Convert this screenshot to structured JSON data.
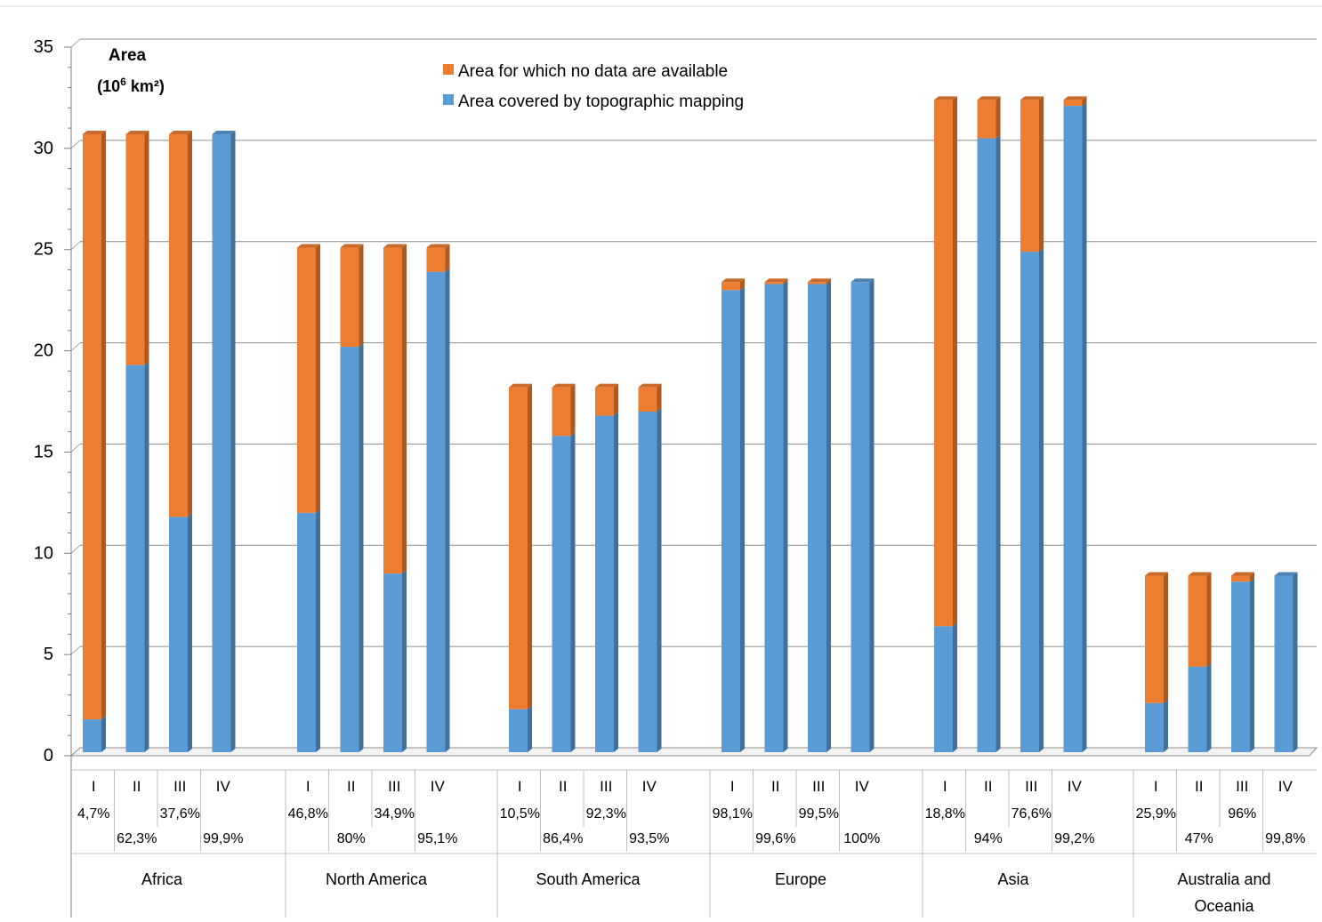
{
  "chart_data": {
    "type": "bar",
    "stacked": true,
    "title": "",
    "ylabel_line1": "Area",
    "ylabel_line2_base": "(10",
    "ylabel_line2_exp": "6",
    "ylabel_line2_unit": " km²)",
    "ylim": [
      0,
      35
    ],
    "yticks": [
      "0",
      "5",
      "10",
      "15",
      "20",
      "25",
      "30",
      "35"
    ],
    "grid": true,
    "legend_position": "top-center",
    "series": [
      {
        "name": "Area for which no data are available",
        "color": "#ED7D31",
        "role": "no-data"
      },
      {
        "name": "Area covered by topographic mapping",
        "color": "#5B9BD5",
        "role": "covered"
      }
    ],
    "groups": [
      {
        "name": "Africa",
        "bars": [
          {
            "label": "I",
            "pct": "4,7%",
            "covered": 1.4,
            "total": 30.3
          },
          {
            "label": "II",
            "pct": "62,3%",
            "covered": 18.9,
            "total": 30.3
          },
          {
            "label": "III",
            "pct": "37,6%",
            "covered": 11.4,
            "total": 30.3
          },
          {
            "label": "IV",
            "pct": "99,9%",
            "covered": 30.3,
            "total": 30.3
          }
        ]
      },
      {
        "name": "North America",
        "bars": [
          {
            "label": "I",
            "pct": "46,8%",
            "covered": 11.6,
            "total": 24.7
          },
          {
            "label": "II",
            "pct": "80%",
            "covered": 19.8,
            "total": 24.7
          },
          {
            "label": "III",
            "pct": "34,9%",
            "covered": 8.6,
            "total": 24.7
          },
          {
            "label": "IV",
            "pct": "95,1%",
            "covered": 23.5,
            "total": 24.7
          }
        ]
      },
      {
        "name": "South America",
        "bars": [
          {
            "label": "I",
            "pct": "10,5%",
            "covered": 1.9,
            "total": 17.8
          },
          {
            "label": "II",
            "pct": "86,4%",
            "covered": 15.4,
            "total": 17.8
          },
          {
            "label": "III",
            "pct": "92,3%",
            "covered": 16.4,
            "total": 17.8
          },
          {
            "label": "IV",
            "pct": "93,5%",
            "covered": 16.6,
            "total": 17.8
          }
        ]
      },
      {
        "name": "Europe",
        "bars": [
          {
            "label": "I",
            "pct": "98,1%",
            "covered": 22.6,
            "total": 23.0
          },
          {
            "label": "II",
            "pct": "99,6%",
            "covered": 22.9,
            "total": 23.0
          },
          {
            "label": "III",
            "pct": "99,5%",
            "covered": 22.9,
            "total": 23.0
          },
          {
            "label": "IV",
            "pct": "100%",
            "covered": 23.0,
            "total": 23.0
          }
        ]
      },
      {
        "name": "Asia",
        "bars": [
          {
            "label": "I",
            "pct": "18,8%",
            "covered": 6.0,
            "total": 32.0
          },
          {
            "label": "II",
            "pct": "94%",
            "covered": 30.1,
            "total": 32.0
          },
          {
            "label": "III",
            "pct": "76,6%",
            "covered": 24.5,
            "total": 32.0
          },
          {
            "label": "IV",
            "pct": "99,2%",
            "covered": 31.7,
            "total": 32.0
          }
        ]
      },
      {
        "name": "Australia and Oceania",
        "name_lines": [
          "Australia and",
          "Oceania"
        ],
        "bars": [
          {
            "label": "I",
            "pct": "25,9%",
            "covered": 2.2,
            "total": 8.5
          },
          {
            "label": "II",
            "pct": "47%",
            "covered": 4.0,
            "total": 8.5
          },
          {
            "label": "III",
            "pct": "96%",
            "covered": 8.2,
            "total": 8.5
          },
          {
            "label": "IV",
            "pct": "99,8%",
            "covered": 8.5,
            "total": 8.5
          }
        ]
      }
    ]
  }
}
